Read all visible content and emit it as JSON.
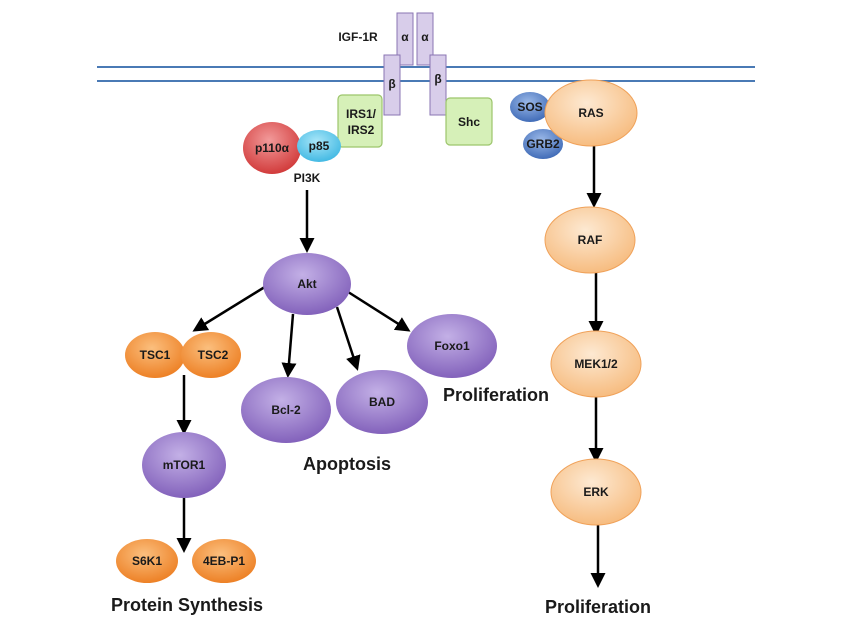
{
  "receptor": {
    "name": "IGF-1R",
    "alpha1": "α",
    "alpha2": "α",
    "beta1": "β",
    "beta2": "β"
  },
  "adaptors": {
    "irs_line1": "IRS1/",
    "irs_line2": "IRS2",
    "shc": "Shc"
  },
  "pi3k": {
    "p110": "p110α",
    "p85": "p85",
    "label": "PI3K"
  },
  "akt_branch": {
    "akt": "Akt",
    "tsc1": "TSC1",
    "tsc2": "TSC2",
    "mtor": "mTOR1",
    "s6k1": "S6K1",
    "eif": "4EB-P1",
    "bcl2": "Bcl-2",
    "bad": "BAD",
    "foxo": "Foxo1"
  },
  "ras_branch": {
    "sos": "SOS",
    "grb2": "GRB2",
    "ras": "RAS",
    "raf": "RAF",
    "mek": "MEK1/2",
    "erk": "ERK"
  },
  "outcomes": {
    "protein_synthesis": "Protein Synthesis",
    "apoptosis": "Apoptosis",
    "proliferation_akt": "Proliferation",
    "proliferation_ras": "Proliferation"
  },
  "colors": {
    "membrane": "#4a7ab5",
    "receptor_fill": "#d8cdea",
    "receptor_stroke": "#8a75b3",
    "adaptor_fill": "#d6f0b8",
    "adaptor_stroke": "#9cc56b",
    "p110": "#d94a4a",
    "p85": "#56c3e8",
    "purple_node": "#8e6fc2",
    "orange_node": "#f08a2e",
    "peach_node": "#f9c795",
    "blue_node": "#4a78c2"
  }
}
